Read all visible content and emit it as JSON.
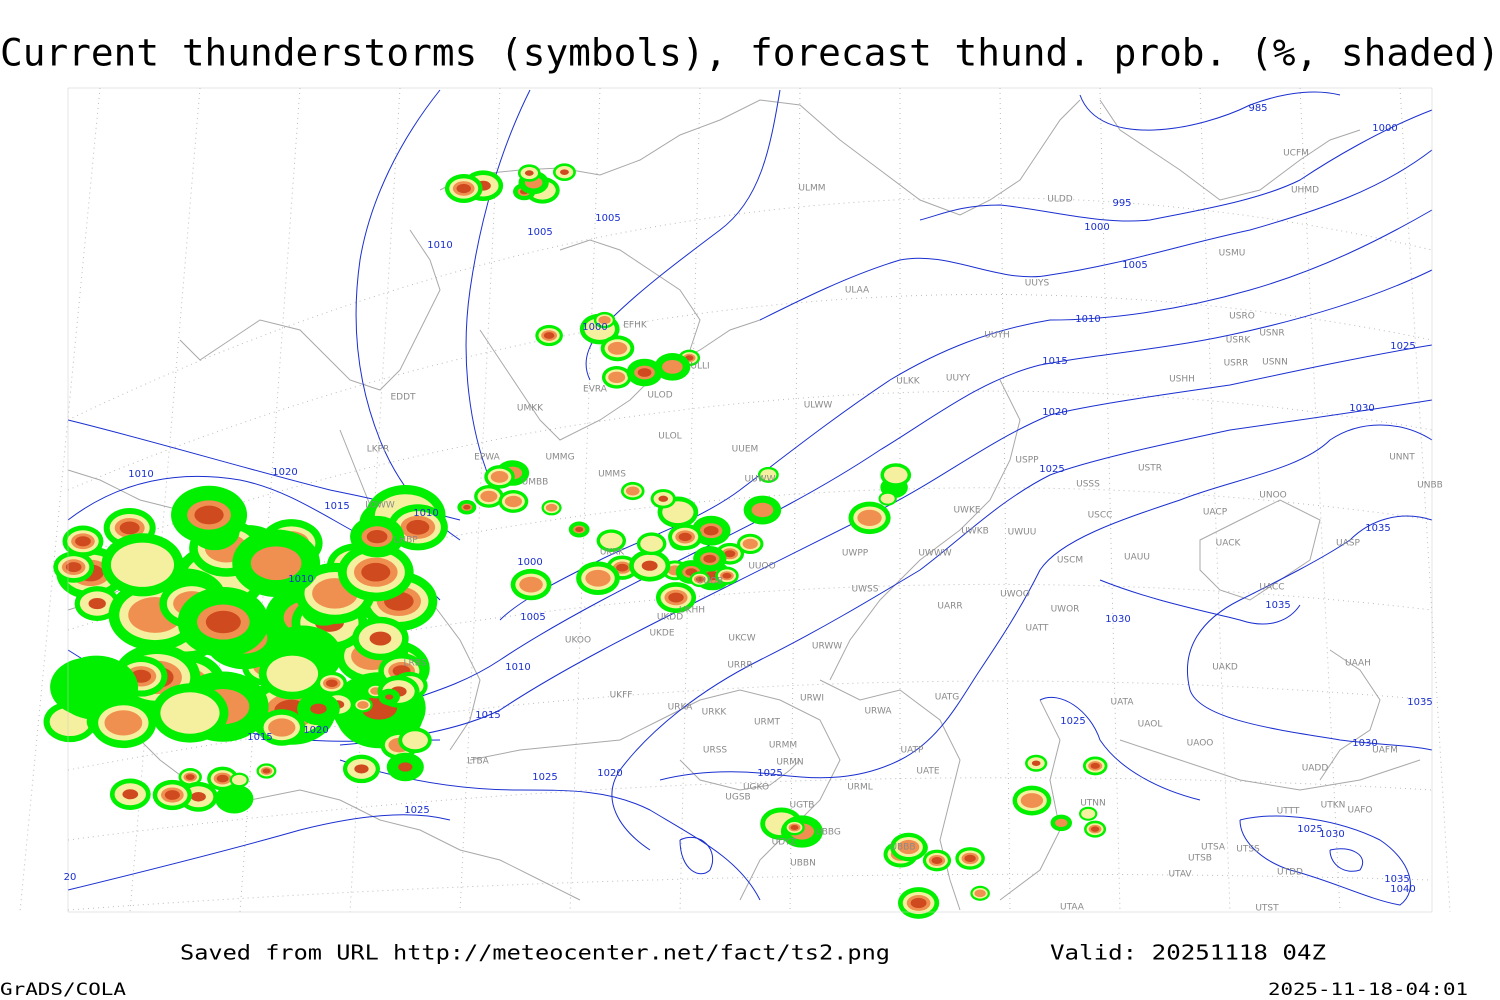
{
  "title": "Current thunderstorms (symbols), forecast thund. prob. (%, shaded)",
  "footer": {
    "source": "Saved from URL http://meteocenter.net/fact/ts2.png",
    "valid": "Valid: 20251118 04Z",
    "software": "GrADS/COLA",
    "timestamp": "2025-11-18-04:01"
  },
  "isobar_labels": [
    "985",
    "1000",
    "995",
    "1000",
    "1005",
    "1010",
    "1015",
    "1020",
    "1025",
    "1025",
    "1030",
    "1035",
    "1035",
    "1030",
    "1005",
    "1005",
    "1010",
    "1000",
    "1000",
    "1005",
    "1010",
    "1015",
    "1010",
    "1020",
    "1015",
    "1010",
    "1010",
    "1015",
    "1020",
    "1025",
    "1020",
    "1025",
    "1025",
    "1025",
    "1030",
    "1035",
    "1025",
    "1030",
    "1035",
    "1040",
    "20"
  ],
  "station_labels": [
    "ULDD",
    "ULMM",
    "ULAA",
    "UUYS",
    "USMU",
    "UUYH",
    "USRO",
    "USRK",
    "USNR",
    "USRR",
    "USNN",
    "USHH",
    "ULKK",
    "UUYY",
    "ULWW",
    "UUEM",
    "USPP",
    "USTR",
    "UNNT",
    "UNBB",
    "USSS",
    "UNOO",
    "UUWW",
    "UWKE",
    "USCC",
    "UACP",
    "UWKB",
    "UWUU",
    "UACK",
    "UASP",
    "UWPP",
    "UWWW",
    "UAUU",
    "USCM",
    "UACC",
    "UWSS",
    "UARR",
    "UWOO",
    "UWOR",
    "UATT",
    "URWW",
    "UAKD",
    "URRR",
    "URWI",
    "UATG",
    "UATA",
    "URWA",
    "UAOL",
    "URMT",
    "UAOO",
    "URMM",
    "UATP",
    "URMN",
    "UATE",
    "UADD",
    "UAAH",
    "UAFM",
    "URML",
    "UTNN",
    "UTTT",
    "UTKN",
    "UAFO",
    "UBBG",
    "UBBB",
    "UTSA",
    "UTSB",
    "UTSS",
    "UBBN",
    "UTAV",
    "UTDD",
    "UTST",
    "UTAA",
    "EFHK",
    "ULLI",
    "EVRA",
    "UMKK",
    "EDDT",
    "EPWA",
    "UMMG",
    "UMBB",
    "LKPR",
    "LOWW",
    "LHBP",
    "UKKK",
    "UUOO",
    "UUOB",
    "UKHH",
    "UKDD",
    "UKDE",
    "UKFF",
    "URKA",
    "URKK",
    "UKOO",
    "UKCW",
    "URSS",
    "UGSB",
    "UGKO",
    "UGTB",
    "UDYZ",
    "LTBA",
    "LRBS",
    "UMMS",
    "ULOL",
    "ULOD",
    "UCFM",
    "UHMD"
  ]
}
